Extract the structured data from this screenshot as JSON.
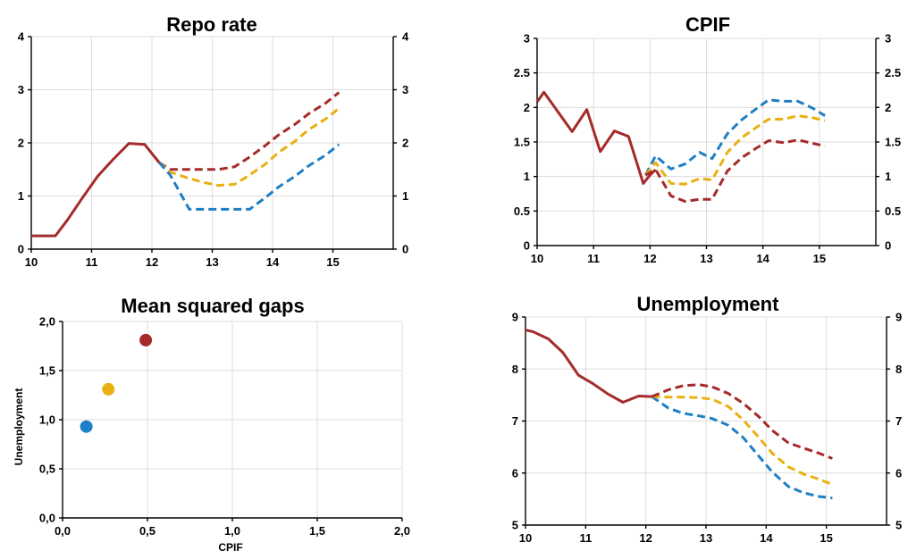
{
  "colors": {
    "outcome": "#a52a2a",
    "blue": "#1f7fc4",
    "yellow": "#e8b010",
    "red_alt": "#a52a2a"
  },
  "chart_data": [
    {
      "type": "line",
      "title": "Repo rate",
      "xlabel": "",
      "ylabel": "",
      "xlim": [
        10,
        16
      ],
      "ylim": [
        0,
        4
      ],
      "x_ticks": [
        "10",
        "11",
        "12",
        "13",
        "14",
        "15"
      ],
      "y_ticks_left": [
        "0",
        "1",
        "2",
        "3",
        "4"
      ],
      "y_ticks_right": [
        "0",
        "1",
        "2",
        "3",
        "4"
      ],
      "grid": true,
      "series": [
        {
          "color": "#a52a2a",
          "style": "solid",
          "x": [
            10.0,
            10.4,
            10.6,
            10.85,
            11.1,
            11.35,
            11.62,
            11.88,
            12.0,
            12.12
          ],
          "y": [
            0.25,
            0.25,
            0.55,
            0.97,
            1.37,
            1.68,
            1.99,
            1.97,
            1.8,
            1.63
          ]
        },
        {
          "color": "#a52a2a",
          "style": "dashed",
          "x": [
            12.12,
            12.3,
            12.62,
            12.88,
            13.1,
            13.37,
            13.6,
            13.88,
            14.1,
            14.37,
            14.6,
            14.88,
            15.1
          ],
          "y": [
            1.63,
            1.5,
            1.5,
            1.5,
            1.5,
            1.55,
            1.72,
            1.95,
            2.15,
            2.35,
            2.55,
            2.75,
            2.95
          ]
        },
        {
          "color": "#e8b010",
          "style": "dashed",
          "x": [
            12.12,
            12.3,
            12.62,
            12.88,
            13.1,
            13.37,
            13.6,
            13.88,
            14.1,
            14.37,
            14.6,
            14.88,
            15.1
          ],
          "y": [
            1.63,
            1.45,
            1.33,
            1.25,
            1.2,
            1.22,
            1.38,
            1.6,
            1.82,
            2.03,
            2.25,
            2.45,
            2.65
          ]
        },
        {
          "color": "#1f7fc4",
          "style": "dashed",
          "x": [
            12.12,
            12.3,
            12.62,
            12.88,
            13.1,
            13.37,
            13.62,
            13.88,
            14.1,
            14.37,
            14.6,
            14.88,
            15.1
          ],
          "y": [
            1.63,
            1.4,
            0.75,
            0.75,
            0.75,
            0.75,
            0.75,
            0.97,
            1.17,
            1.37,
            1.57,
            1.77,
            1.97
          ]
        }
      ]
    },
    {
      "type": "line",
      "title": "CPIF",
      "xlabel": "",
      "ylabel": "",
      "xlim": [
        10,
        16
      ],
      "ylim": [
        0,
        3
      ],
      "x_ticks": [
        "10",
        "11",
        "12",
        "13",
        "14",
        "15"
      ],
      "y_ticks_left": [
        "0",
        "0.5",
        "1",
        "1.5",
        "2",
        "2.5",
        "3"
      ],
      "y_ticks_right": [
        "0",
        "0.5",
        "1",
        "1.5",
        "2",
        "2.5",
        "3"
      ],
      "grid": true,
      "series": [
        {
          "color": "#a52a2a",
          "style": "solid",
          "x": [
            10.0,
            10.12,
            10.62,
            10.88,
            11.12,
            11.37,
            11.62,
            11.88,
            12.0,
            12.1
          ],
          "y": [
            2.08,
            2.22,
            1.65,
            1.97,
            1.36,
            1.66,
            1.58,
            0.9,
            1.02,
            1.1
          ]
        },
        {
          "color": "#1f7fc4",
          "style": "dashed",
          "x": [
            11.92,
            12.1,
            12.37,
            12.62,
            12.88,
            13.1,
            13.37,
            13.62,
            13.88,
            14.1,
            14.37,
            14.62,
            14.88,
            15.1
          ],
          "y": [
            1.02,
            1.3,
            1.11,
            1.18,
            1.35,
            1.26,
            1.62,
            1.82,
            1.98,
            2.11,
            2.09,
            2.09,
            1.99,
            1.88
          ]
        },
        {
          "color": "#e8b010",
          "style": "dashed",
          "x": [
            11.92,
            12.1,
            12.37,
            12.62,
            12.88,
            13.1,
            13.37,
            13.62,
            13.88,
            14.1,
            14.37,
            14.62,
            14.88,
            15.1
          ],
          "y": [
            1.02,
            1.2,
            0.9,
            0.89,
            0.97,
            0.95,
            1.35,
            1.56,
            1.71,
            1.83,
            1.83,
            1.88,
            1.85,
            1.81
          ]
        },
        {
          "color": "#a52a2a",
          "style": "dashed",
          "x": [
            11.92,
            12.1,
            12.37,
            12.62,
            12.88,
            13.1,
            13.37,
            13.62,
            13.88,
            14.1,
            14.37,
            14.62,
            14.88,
            15.1
          ],
          "y": [
            1.02,
            1.1,
            0.72,
            0.64,
            0.67,
            0.67,
            1.08,
            1.27,
            1.41,
            1.52,
            1.49,
            1.53,
            1.48,
            1.44
          ]
        }
      ]
    },
    {
      "type": "scatter",
      "title": "Mean squared gaps",
      "xlabel": "CPIF",
      "ylabel": "Unemployment",
      "xlim": [
        0,
        2
      ],
      "ylim": [
        0,
        2
      ],
      "x_ticks": [
        "0,0",
        "0,5",
        "1,0",
        "1,5",
        "2,0"
      ],
      "y_ticks": [
        "0,0",
        "0,5",
        "1,0",
        "1,5",
        "2,0"
      ],
      "grid": true,
      "points": [
        {
          "x": 0.14,
          "y": 0.93,
          "color": "#1f7fc4"
        },
        {
          "x": 0.27,
          "y": 1.31,
          "color": "#e8b010"
        },
        {
          "x": 0.49,
          "y": 1.81,
          "color": "#a52a2a"
        }
      ]
    },
    {
      "type": "line",
      "title": "Unemployment",
      "xlabel": "",
      "ylabel": "",
      "xlim": [
        10,
        16
      ],
      "ylim": [
        5,
        9
      ],
      "x_ticks": [
        "10",
        "11",
        "12",
        "13",
        "14",
        "15"
      ],
      "y_ticks_left": [
        "5",
        "6",
        "7",
        "8",
        "9"
      ],
      "y_ticks_right": [
        "5",
        "6",
        "7",
        "8",
        "9"
      ],
      "grid": true,
      "series": [
        {
          "color": "#a52a2a",
          "style": "solid",
          "x": [
            10.0,
            10.12,
            10.38,
            10.62,
            10.88,
            11.12,
            11.37,
            11.62,
            11.88,
            12.1
          ],
          "y": [
            8.75,
            8.72,
            8.58,
            8.32,
            7.88,
            7.72,
            7.52,
            7.36,
            7.48,
            7.47
          ]
        },
        {
          "color": "#1f7fc4",
          "style": "dashed",
          "x": [
            12.1,
            12.37,
            12.62,
            12.88,
            13.1,
            13.37,
            13.62,
            13.88,
            14.1,
            14.37,
            14.62,
            14.88,
            15.1
          ],
          "y": [
            7.47,
            7.25,
            7.15,
            7.1,
            7.05,
            6.92,
            6.68,
            6.32,
            6.02,
            5.74,
            5.62,
            5.55,
            5.52
          ]
        },
        {
          "color": "#e8b010",
          "style": "dashed",
          "x": [
            12.1,
            12.37,
            12.62,
            12.88,
            13.1,
            13.37,
            13.62,
            13.88,
            14.1,
            14.37,
            14.62,
            14.88,
            15.1
          ],
          "y": [
            7.47,
            7.46,
            7.46,
            7.45,
            7.42,
            7.28,
            7.02,
            6.68,
            6.38,
            6.12,
            5.98,
            5.88,
            5.78
          ]
        },
        {
          "color": "#a52a2a",
          "style": "dashed",
          "x": [
            12.1,
            12.37,
            12.62,
            12.88,
            13.1,
            13.37,
            13.62,
            13.88,
            14.1,
            14.37,
            14.62,
            14.88,
            15.1
          ],
          "y": [
            7.47,
            7.6,
            7.68,
            7.7,
            7.66,
            7.53,
            7.34,
            7.08,
            6.82,
            6.58,
            6.48,
            6.38,
            6.28
          ]
        }
      ]
    }
  ]
}
